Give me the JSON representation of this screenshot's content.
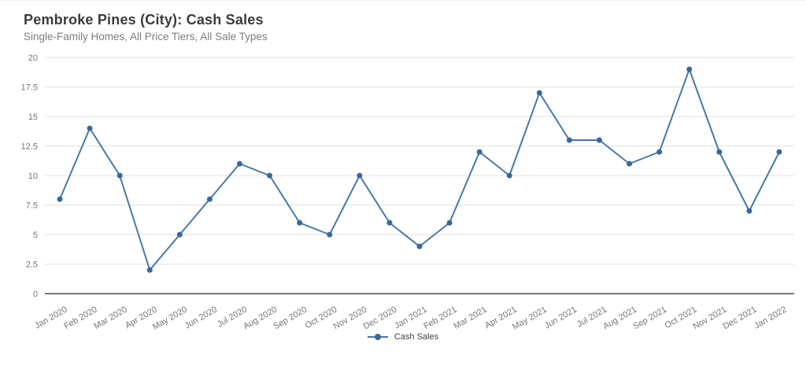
{
  "chart_data": {
    "type": "line",
    "title": "Pembroke Pines (City): Cash Sales",
    "subtitle": "Single-Family Homes, All Price Tiers, All Sale Types",
    "categories": [
      "Jan 2020",
      "Feb 2020",
      "Mar 2020",
      "Apr 2020",
      "May 2020",
      "Jun 2020",
      "Jul 2020",
      "Aug 2020",
      "Sep 2020",
      "Oct 2020",
      "Nov 2020",
      "Dec 2020",
      "Jan 2021",
      "Feb 2021",
      "Mar 2021",
      "Apr 2021",
      "May 2021",
      "Jun 2021",
      "Jul 2021",
      "Aug 2021",
      "Sep 2021",
      "Oct 2021",
      "Nov 2021",
      "Dec 2021",
      "Jan 2022"
    ],
    "series": [
      {
        "name": "Cash Sales",
        "values": [
          8,
          14,
          10,
          2,
          5,
          8,
          11,
          10,
          6,
          5,
          10,
          6,
          4,
          6,
          12,
          10,
          17,
          13,
          13,
          11,
          12,
          19,
          12,
          7,
          12
        ],
        "color": "#4878a8",
        "marker_color": "#38689a"
      }
    ],
    "xlabel": "",
    "ylabel": "",
    "ylim": [
      0,
      20
    ],
    "yticks": [
      0,
      2.5,
      5,
      7.5,
      10,
      12.5,
      15,
      17.5,
      20
    ],
    "grid": true,
    "legend_position": "bottom"
  }
}
